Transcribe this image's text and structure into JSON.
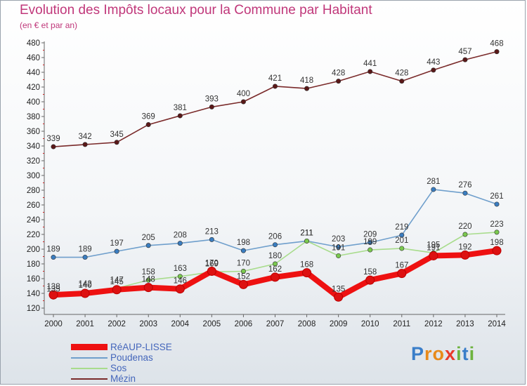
{
  "title": "Evolution des Impôts locaux pour la Commune par Habitant",
  "subtitle": "(en € et par an)",
  "brand": {
    "letters": [
      {
        "ch": "P",
        "color": "#3a7ec9"
      },
      {
        "ch": "r",
        "color": "#e88a1a"
      },
      {
        "ch": "o",
        "color": "#e88a1a"
      },
      {
        "ch": "x",
        "color": "#e8392a"
      },
      {
        "ch": "i",
        "color": "#6db33f"
      },
      {
        "ch": "t",
        "color": "#3a7ec9"
      },
      {
        "ch": "i",
        "color": "#6db33f"
      }
    ]
  },
  "chart_data": {
    "type": "line",
    "title": "Evolution des Impôts locaux pour la Commune par Habitant",
    "subtitle": "(en € et par an)",
    "x": [
      "2000",
      "2001",
      "2002",
      "2003",
      "2004",
      "2005",
      "2006",
      "2007",
      "2008",
      "2009",
      "2010",
      "2011",
      "2012",
      "2013",
      "2014"
    ],
    "ylim": [
      120,
      480
    ],
    "yticks": [
      120,
      140,
      160,
      180,
      200,
      220,
      240,
      260,
      280,
      300,
      320,
      340,
      360,
      380,
      400,
      420,
      440,
      460,
      480
    ],
    "grid": false,
    "legend_position": "bottom-left",
    "series": [
      {
        "name": "Mézin",
        "color": "#7a2a2a",
        "dot": "#5a1818",
        "emphasis": false,
        "values": [
          339,
          342,
          345,
          369,
          381,
          393,
          400,
          421,
          418,
          428,
          441,
          428,
          443,
          457,
          468
        ]
      },
      {
        "name": "Poudenas",
        "color": "#6f9fcc",
        "dot": "#3a7dc0",
        "emphasis": false,
        "values": [
          189,
          189,
          197,
          205,
          208,
          213,
          198,
          206,
          211,
          203,
          209,
          219,
          281,
          276,
          261
        ]
      },
      {
        "name": "Sos",
        "color": "#a8dc8c",
        "dot": "#7ac94e",
        "emphasis": false,
        "values": [
          135,
          142,
          147,
          158,
          163,
          169,
          170,
          180,
          211,
          191,
          199,
          201,
          195,
          220,
          223
        ]
      },
      {
        "name": "RéAUP-LISSE",
        "color": "#ee1111",
        "dot": "#dd1111",
        "emphasis": true,
        "values": [
          138,
          140,
          145,
          148,
          146,
          170,
          152,
          162,
          168,
          135,
          158,
          167,
          191,
          192,
          198
        ]
      }
    ],
    "legend_order": [
      "RéAUP-LISSE",
      "Poudenas",
      "Sos",
      "Mézin"
    ]
  }
}
